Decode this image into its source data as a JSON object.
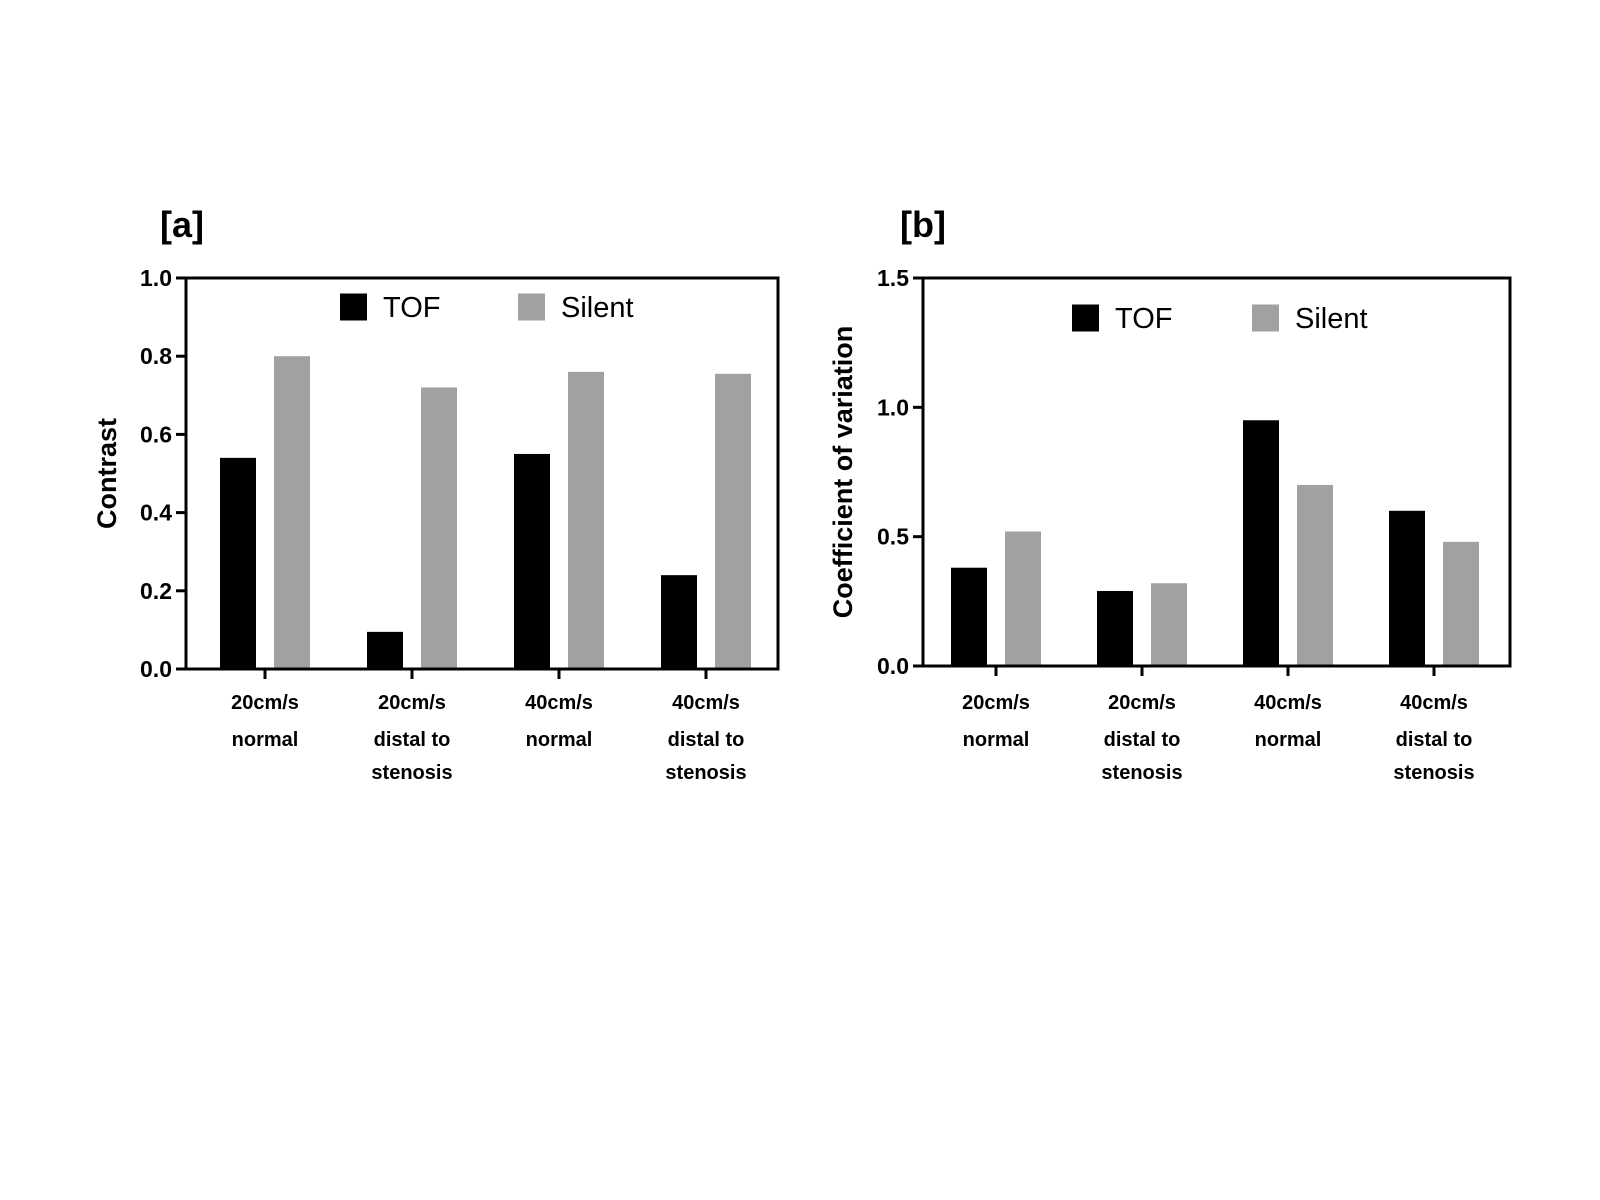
{
  "chart_data": [
    {
      "type": "bar",
      "panel_label": "[a]",
      "categories": [
        [
          "20cm/s",
          "normal"
        ],
        [
          "20cm/s",
          "distal to",
          "stenosis"
        ],
        [
          "40cm/s",
          "normal"
        ],
        [
          "40cm/s",
          "distal to",
          "stenosis"
        ]
      ],
      "series": [
        {
          "name": "TOF",
          "color": "#000000",
          "values": [
            0.54,
            0.095,
            0.55,
            0.24
          ]
        },
        {
          "name": "Silent",
          "color": "#a1a1a4",
          "values": [
            0.8,
            0.72,
            0.76,
            0.755
          ]
        }
      ],
      "xlabel": "",
      "ylabel": "Contrast",
      "ylim": [
        0,
        1.0
      ],
      "yticks": [
        0.0,
        0.2,
        0.4,
        0.6,
        0.8,
        1.0
      ],
      "ytick_labels": [
        "0.0",
        "0.2",
        "0.4",
        "0.6",
        "0.8",
        "1.0"
      ],
      "legend_position": "top-center"
    },
    {
      "type": "bar",
      "panel_label": "[b]",
      "categories": [
        [
          "20cm/s",
          "normal"
        ],
        [
          "20cm/s",
          "distal to",
          "stenosis"
        ],
        [
          "40cm/s",
          "normal"
        ],
        [
          "40cm/s",
          "distal to",
          "stenosis"
        ]
      ],
      "series": [
        {
          "name": "TOF",
          "color": "#000000",
          "values": [
            0.38,
            0.29,
            0.95,
            0.6
          ]
        },
        {
          "name": "Silent",
          "color": "#a1a1a4",
          "values": [
            0.52,
            0.32,
            0.7,
            0.48
          ]
        }
      ],
      "xlabel": "",
      "ylabel": "Coefficient of variation",
      "ylim": [
        0,
        1.5
      ],
      "yticks": [
        0.0,
        0.5,
        1.0,
        1.5
      ],
      "ytick_labels": [
        "0.0",
        "0.5",
        "1.0",
        "1.5"
      ],
      "legend_position": "top-center"
    }
  ]
}
